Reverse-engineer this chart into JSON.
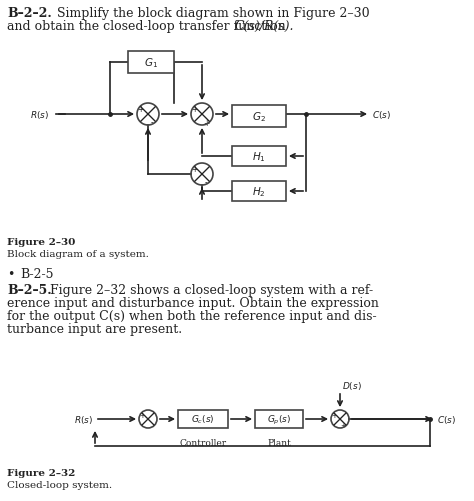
{
  "bg_color": "#ffffff",
  "text_color": "#222222",
  "box_color": "#ffffff",
  "box_edge": "#444444",
  "line_color": "#222222",
  "title1_bold": "B–2–2.",
  "title1_rest": " Simplify the block diagram shown in Figure 2–30",
  "title1_line2a": "and obtain the closed-loop transfer function ",
  "title1_line2b": "C(s)/R(s).",
  "fig1_label": "Figure 2–30",
  "fig1_caption": "Block diagram of a system.",
  "bullet": "•",
  "bullet_text": "B-2-5",
  "title2_bold": "B–2–5.",
  "title2_line1": " Figure 2–32 shows a closed-loop system with a ref-",
  "title2_line2": "erence input and disturbance input. Obtain the expression",
  "title2_line3": "for the output C(s) when both the reference input and dis-",
  "title2_line4": "turbance input are present.",
  "fig2_label": "Figure 2–32",
  "fig2_caption": "Closed-loop system.",
  "lw": 1.2
}
